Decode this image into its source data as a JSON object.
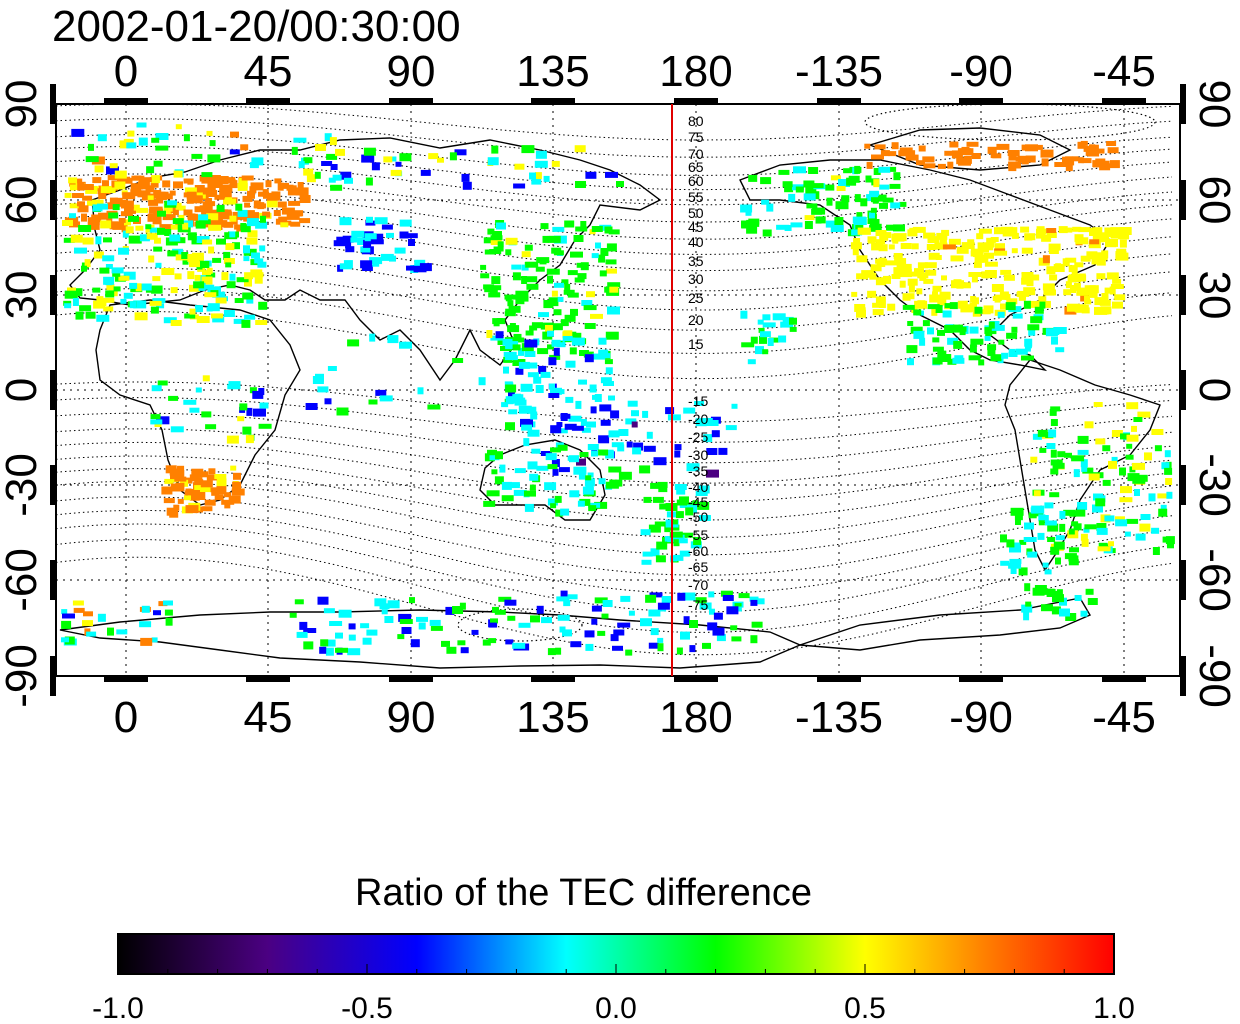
{
  "title": "2002-01-20/00:30:00",
  "map": {
    "lon_ticks": [
      "0",
      "45",
      "90",
      "135",
      "180",
      "-135",
      "-90",
      "-45"
    ],
    "lat_ticks_left": [
      "90",
      "60",
      "30",
      "0",
      "-30",
      "-60",
      "-90"
    ],
    "lat_ticks_right": [
      "90",
      "60",
      "30",
      "0",
      "-30",
      "-60",
      "-90"
    ],
    "meridian_line_color": "#e00000",
    "magnetic_lat_labels_north": [
      "80",
      "75",
      "70",
      "65",
      "60",
      "55",
      "50",
      "45",
      "40",
      "35",
      "30",
      "25",
      "20",
      "15"
    ],
    "magnetic_lat_labels_south": [
      "-15",
      "-20",
      "-25",
      "-30",
      "-35",
      "-40",
      "-45",
      "-50",
      "-55",
      "-60",
      "-65",
      "-70",
      "-75"
    ]
  },
  "colorbar": {
    "title": "Ratio of the TEC difference",
    "tick_labels": [
      "-1.0",
      "-0.5",
      "0.0",
      "0.5",
      "1.0"
    ],
    "range": [
      -1.0,
      1.0
    ],
    "colormap": [
      "#000000",
      "#4b0082",
      "#0000ff",
      "#00ffff",
      "#00ff00",
      "#ffff00",
      "#ff8000",
      "#ff0000"
    ]
  }
}
